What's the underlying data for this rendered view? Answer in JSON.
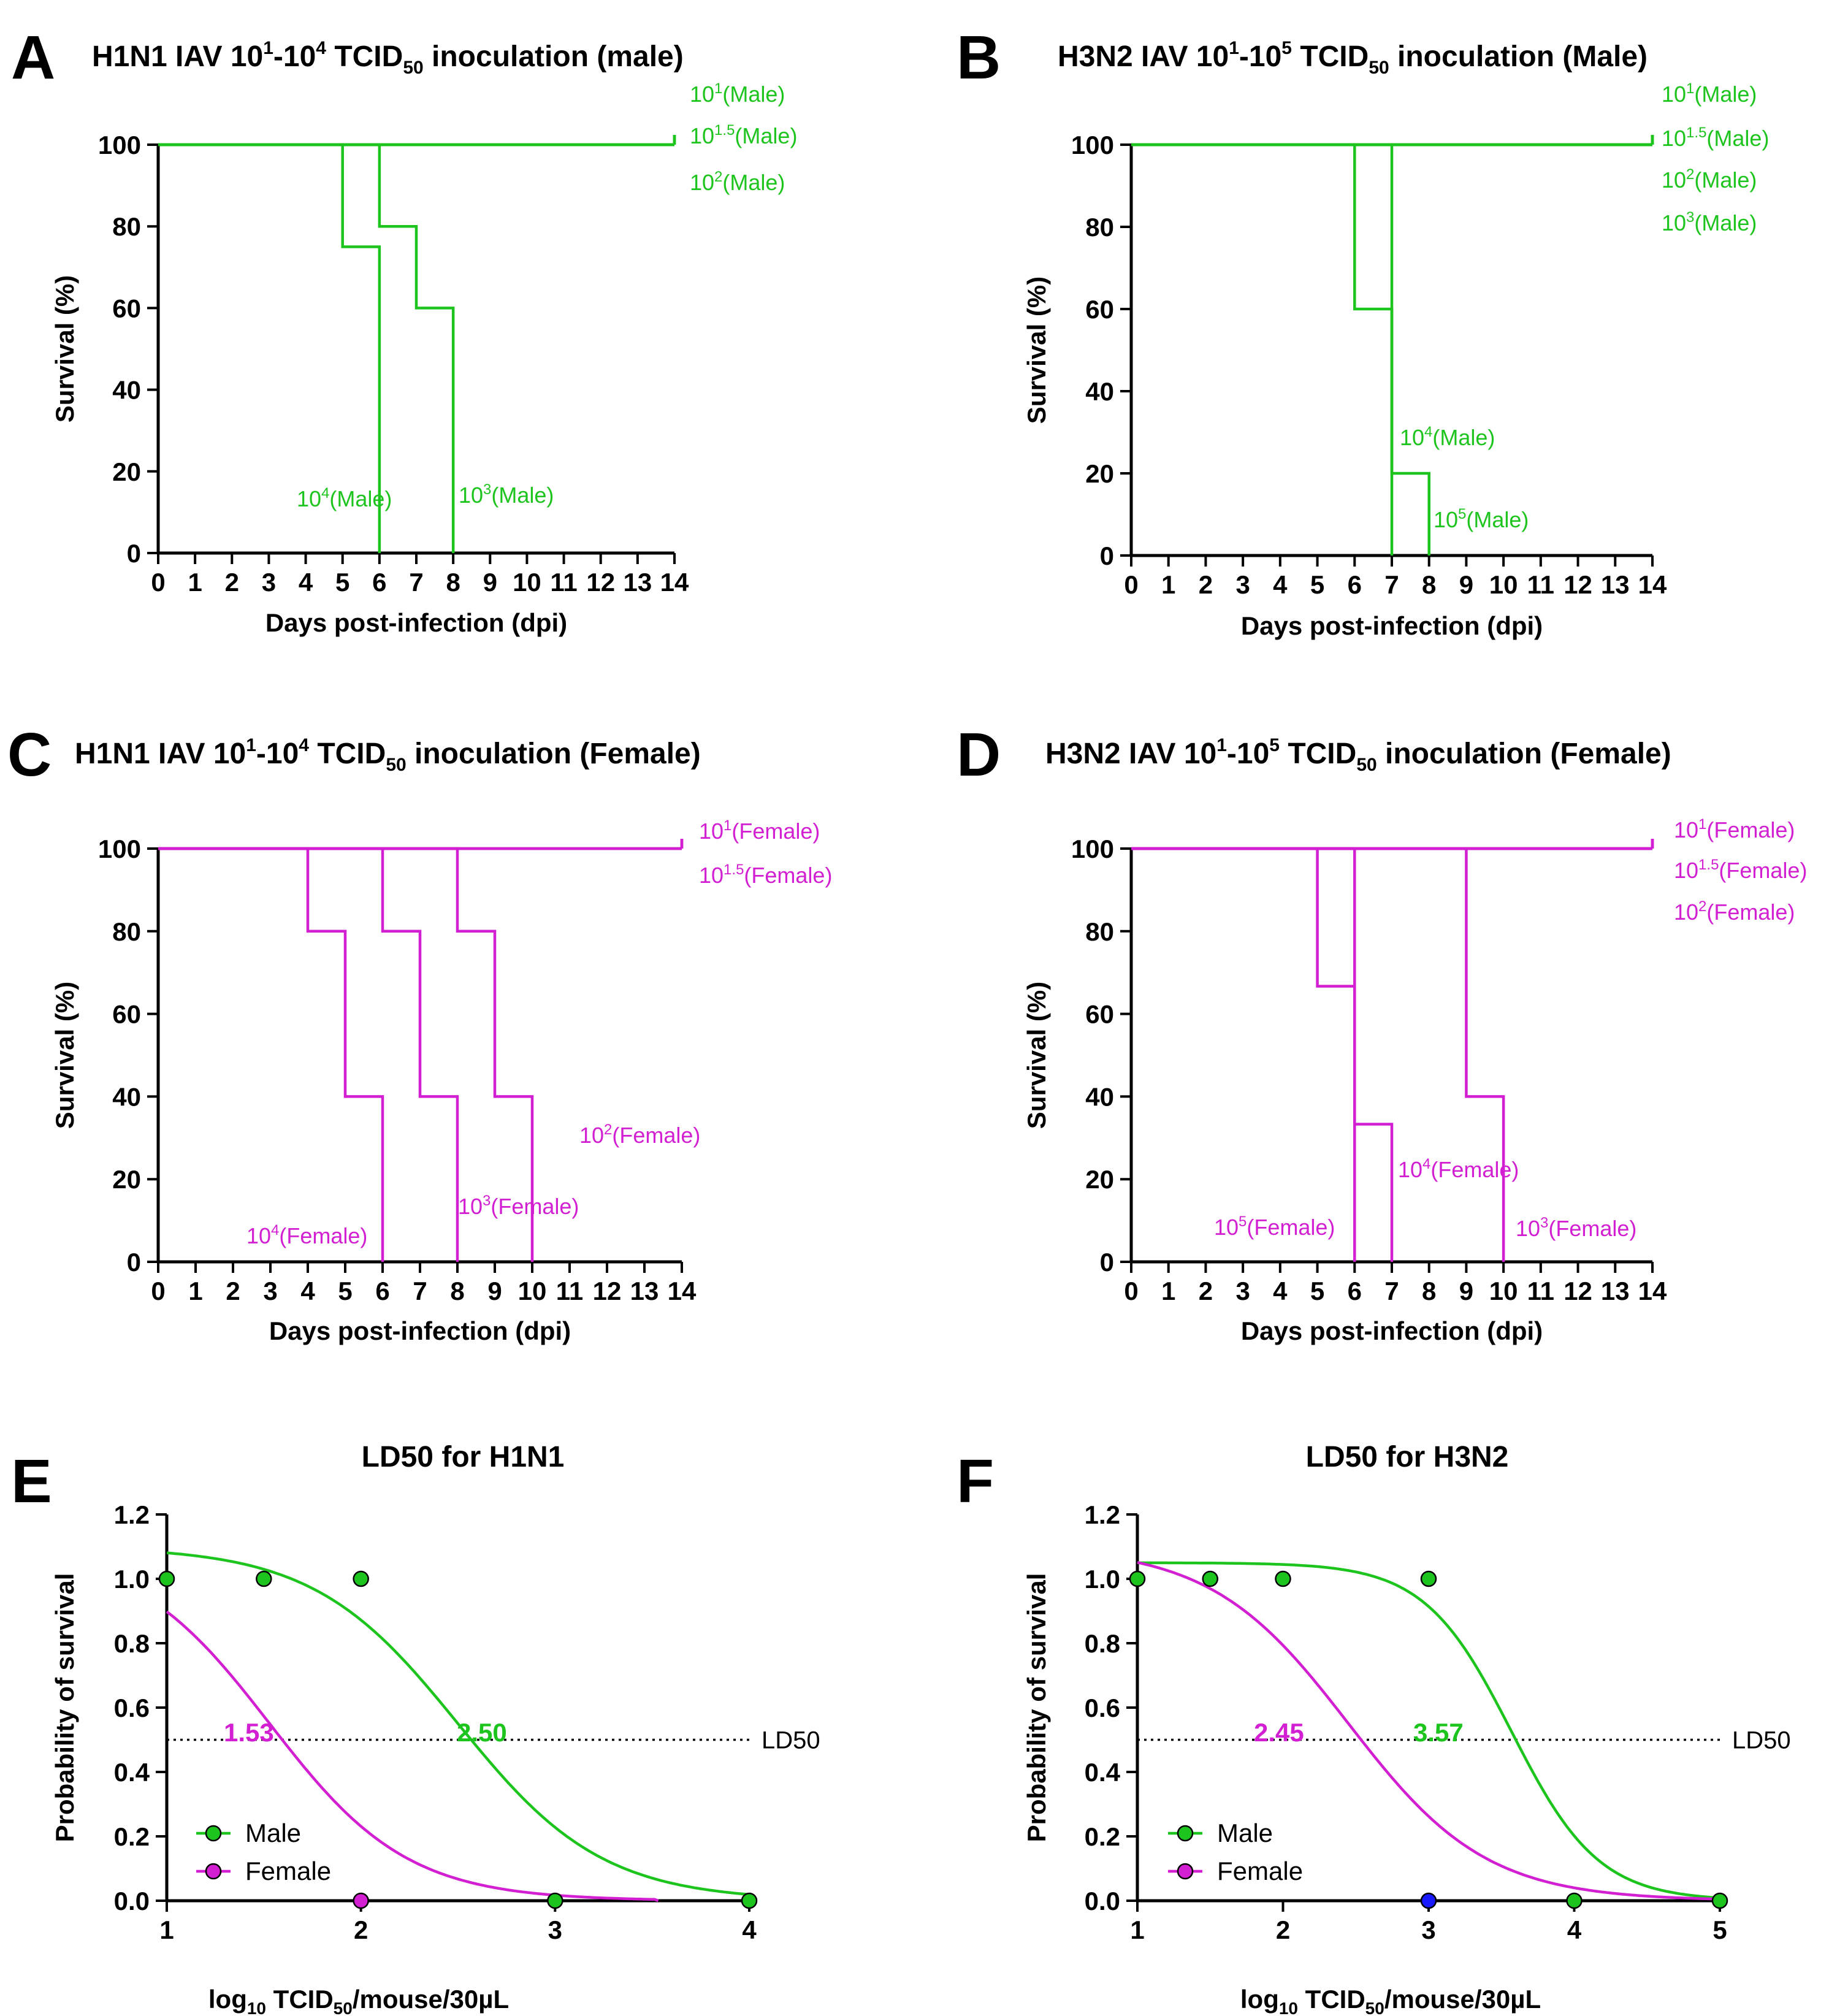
{
  "colors": {
    "male": "#1ec41e",
    "female": "#d21fd2",
    "axis": "#000000",
    "blue_point": "#1a1aff"
  },
  "panels": {
    "A": {
      "letter": "A",
      "title": {
        "pre": "H1N1 IAV 10",
        "sup1": "1",
        "mid": "-10",
        "sup2": "4",
        "post1": " TCID",
        "sub": "50",
        "post2": " inoculation (male)"
      }
    },
    "B": {
      "letter": "B",
      "title": {
        "pre": "H3N2 IAV 10",
        "sup1": "1",
        "mid": "-10",
        "sup2": "5",
        "post1": " TCID",
        "sub": "50",
        "post2": " inoculation (Male)"
      }
    },
    "C": {
      "letter": "C",
      "title": {
        "pre": "H1N1 IAV 10",
        "sup1": "1",
        "mid": "-10",
        "sup2": "4",
        "post1": " TCID",
        "sub": "50",
        "post2": " inoculation (Female)"
      }
    },
    "D": {
      "letter": "D",
      "title": {
        "pre": "H3N2 IAV 10",
        "sup1": "1",
        "mid": "-10",
        "sup2": "5",
        "post1": " TCID",
        "sub": "50",
        "post2": " inoculation (Female)"
      }
    },
    "E": {
      "letter": "E",
      "title": "LD50 for H1N1"
    },
    "F": {
      "letter": "F",
      "title": "LD50 for H3N2"
    }
  },
  "chart_data": [
    {
      "panel": "A",
      "type": "line",
      "step": true,
      "xlabel": "Days post-infection  (dpi)",
      "ylabel": "Survival  (%)",
      "xlim": [
        0,
        14
      ],
      "ylim": [
        0,
        100
      ],
      "xticks": [
        "0",
        "1",
        "2",
        "3",
        "4",
        "5",
        "6",
        "7",
        "8",
        "9",
        "10",
        "11",
        "12",
        "13",
        "14"
      ],
      "yticks": [
        "0",
        "20",
        "40",
        "60",
        "80",
        "100"
      ],
      "color": "male",
      "series": [
        {
          "name": "10^1(Male)",
          "x": [
            0,
            14
          ],
          "y": [
            100,
            100
          ]
        },
        {
          "name": "10^1.5(Male)",
          "x": [
            0,
            14
          ],
          "y": [
            100,
            100
          ]
        },
        {
          "name": "10^2(Male)",
          "x": [
            0,
            14
          ],
          "y": [
            100,
            100
          ]
        },
        {
          "name": "10^3(Male)",
          "x": [
            0,
            6,
            7,
            8
          ],
          "y": [
            100,
            80,
            60,
            0
          ]
        },
        {
          "name": "10^4(Male)",
          "x": [
            0,
            5,
            6
          ],
          "y": [
            100,
            75,
            0
          ]
        }
      ],
      "labels": [
        {
          "base": "10",
          "sup": "1",
          "tail": "(Male)"
        },
        {
          "base": "10",
          "sup": "1.5",
          "tail": "(Male)"
        },
        {
          "base": "10",
          "sup": "2",
          "tail": "(Male)"
        },
        {
          "base": "10",
          "sup": "4",
          "tail": "(Male)"
        },
        {
          "base": "10",
          "sup": "3",
          "tail": "(Male)"
        }
      ]
    },
    {
      "panel": "B",
      "type": "line",
      "step": true,
      "xlabel": "Days post-infection  (dpi)",
      "ylabel": "Survival  (%)",
      "xlim": [
        0,
        14
      ],
      "ylim": [
        0,
        100
      ],
      "xticks": [
        "0",
        "1",
        "2",
        "3",
        "4",
        "5",
        "6",
        "7",
        "8",
        "9",
        "10",
        "11",
        "12",
        "13",
        "14"
      ],
      "yticks": [
        "0",
        "20",
        "40",
        "60",
        "80",
        "100"
      ],
      "color": "male",
      "series": [
        {
          "name": "10^1(Male)",
          "x": [
            0,
            14
          ],
          "y": [
            100,
            100
          ]
        },
        {
          "name": "10^1.5(Male)",
          "x": [
            0,
            14
          ],
          "y": [
            100,
            100
          ]
        },
        {
          "name": "10^2(Male)",
          "x": [
            0,
            14
          ],
          "y": [
            100,
            100
          ]
        },
        {
          "name": "10^3(Male)",
          "x": [
            0,
            14
          ],
          "y": [
            100,
            100
          ]
        },
        {
          "name": "10^4(Male)",
          "x": [
            0,
            6,
            7
          ],
          "y": [
            100,
            60,
            0
          ]
        },
        {
          "name": "10^5(Male)",
          "x": [
            0,
            7,
            8
          ],
          "y": [
            100,
            20,
            0
          ]
        }
      ],
      "labels": [
        {
          "base": "10",
          "sup": "1",
          "tail": "(Male)"
        },
        {
          "base": "10",
          "sup": "1.5",
          "tail": "(Male)"
        },
        {
          "base": "10",
          "sup": "2",
          "tail": "(Male)"
        },
        {
          "base": "10",
          "sup": "3",
          "tail": "(Male)"
        },
        {
          "base": "10",
          "sup": "4",
          "tail": "(Male)"
        },
        {
          "base": "10",
          "sup": "5",
          "tail": "(Male)"
        }
      ]
    },
    {
      "panel": "C",
      "type": "line",
      "step": true,
      "xlabel": "Days post-infection  (dpi)",
      "ylabel": "Survival  (%)",
      "xlim": [
        0,
        14
      ],
      "ylim": [
        0,
        100
      ],
      "xticks": [
        "0",
        "1",
        "2",
        "3",
        "4",
        "5",
        "6",
        "7",
        "8",
        "9",
        "10",
        "11",
        "12",
        "13",
        "14"
      ],
      "yticks": [
        "0",
        "20",
        "40",
        "60",
        "80",
        "100"
      ],
      "color": "female",
      "series": [
        {
          "name": "10^1(Female)",
          "x": [
            0,
            14
          ],
          "y": [
            100,
            100
          ]
        },
        {
          "name": "10^1.5(Female)",
          "x": [
            0,
            14
          ],
          "y": [
            100,
            100
          ]
        },
        {
          "name": "10^4(Female)",
          "x": [
            0,
            4,
            5,
            6
          ],
          "y": [
            100,
            80,
            40,
            0
          ]
        },
        {
          "name": "10^3(Female)",
          "x": [
            0,
            6,
            7,
            8
          ],
          "y": [
            100,
            80,
            40,
            0
          ]
        },
        {
          "name": "10^2(Female)",
          "x": [
            0,
            8,
            9,
            10
          ],
          "y": [
            100,
            80,
            40,
            0
          ]
        }
      ],
      "labels": [
        {
          "base": "10",
          "sup": "1",
          "tail": "(Female)"
        },
        {
          "base": "10",
          "sup": "1.5",
          "tail": "(Female)"
        },
        {
          "base": "10",
          "sup": "2",
          "tail": "(Female)"
        },
        {
          "base": "10",
          "sup": "3",
          "tail": "(Female)"
        },
        {
          "base": "10",
          "sup": "4",
          "tail": "(Female)"
        }
      ]
    },
    {
      "panel": "D",
      "type": "line",
      "step": true,
      "xlabel": "Days post-infection  (dpi)",
      "ylabel": "Survival  (%)",
      "xlim": [
        0,
        14
      ],
      "ylim": [
        0,
        100
      ],
      "xticks": [
        "0",
        "1",
        "2",
        "3",
        "4",
        "5",
        "6",
        "7",
        "8",
        "9",
        "10",
        "11",
        "12",
        "13",
        "14"
      ],
      "yticks": [
        "0",
        "20",
        "40",
        "60",
        "80",
        "100"
      ],
      "color": "female",
      "series": [
        {
          "name": "10^1(Female)",
          "x": [
            0,
            14
          ],
          "y": [
            100,
            100
          ]
        },
        {
          "name": "10^1.5(Female)",
          "x": [
            0,
            14
          ],
          "y": [
            100,
            100
          ]
        },
        {
          "name": "10^2(Female)",
          "x": [
            0,
            14
          ],
          "y": [
            100,
            100
          ]
        },
        {
          "name": "10^5(Female)",
          "x": [
            0,
            5,
            6
          ],
          "y": [
            100,
            66.7,
            0
          ]
        },
        {
          "name": "10^4(Female)",
          "x": [
            0,
            6,
            7
          ],
          "y": [
            100,
            33.3,
            0
          ]
        },
        {
          "name": "10^3(Female)",
          "x": [
            0,
            9,
            10
          ],
          "y": [
            100,
            40,
            0
          ]
        }
      ],
      "labels": [
        {
          "base": "10",
          "sup": "1",
          "tail": "(Female)"
        },
        {
          "base": "10",
          "sup": "1.5",
          "tail": "(Female)"
        },
        {
          "base": "10",
          "sup": "2",
          "tail": "(Female)"
        },
        {
          "base": "10",
          "sup": "4",
          "tail": "(Female)"
        },
        {
          "base": "10",
          "sup": "5",
          "tail": "(Female)"
        },
        {
          "base": "10",
          "sup": "3",
          "tail": "(Female)"
        }
      ]
    },
    {
      "panel": "E",
      "type": "scatter",
      "title": "LD50 for H1N1",
      "xlabel": {
        "base": "log",
        "sub1": "10",
        "rest1": " TCID",
        "sub2": "50",
        "rest2": "/mouse/30µL"
      },
      "ylabel": "Probability of survival",
      "xlim": [
        1,
        4
      ],
      "ylim": [
        0,
        1.2
      ],
      "xticks": [
        "1",
        "2",
        "3",
        "4"
      ],
      "yticks": [
        "0.0",
        "0.2",
        "0.4",
        "0.6",
        "0.8",
        "1.0",
        "1.2"
      ],
      "ld50_line": 0.5,
      "ld50_label": "LD50",
      "legend": [
        "Male",
        "Female"
      ],
      "points": {
        "male": {
          "x": [
            1,
            1.5,
            2,
            3,
            4
          ],
          "y": [
            1,
            1,
            1,
            0,
            0
          ]
        },
        "female": {
          "x": [
            2
          ],
          "y": [
            0
          ]
        }
      },
      "curves": {
        "male": {
          "top": 1.1,
          "ld50": 2.5,
          "k": 1.22
        },
        "female": {
          "top": 1.1,
          "ld50": 1.53,
          "k": 1.28
        }
      },
      "ld50_values": {
        "male": "2.50",
        "female": "1.53"
      }
    },
    {
      "panel": "F",
      "type": "scatter",
      "title": "LD50 for H3N2",
      "xlabel": {
        "base": "log",
        "sub1": "10",
        "rest1": " TCID",
        "sub2": "50",
        "rest2": "/mouse/30µL"
      },
      "ylabel": "Probability of survival",
      "xlim": [
        1,
        5
      ],
      "ylim": [
        0,
        1.2
      ],
      "xticks": [
        "1",
        "2",
        "3",
        "4",
        "5"
      ],
      "yticks": [
        "0.0",
        "0.2",
        "0.4",
        "0.6",
        "0.8",
        "1.0",
        "1.2"
      ],
      "ld50_line": 0.5,
      "ld50_label": "LD50",
      "legend": [
        "Male",
        "Female"
      ],
      "points": {
        "male": {
          "x": [
            1,
            1.5,
            2,
            3,
            4,
            5
          ],
          "y": [
            1,
            1,
            1,
            1,
            0,
            0
          ]
        },
        "female": {
          "x": [
            3
          ],
          "y": [
            0
          ]
        }
      },
      "curves": {
        "male": {
          "top": 1.05,
          "ld50": 3.57,
          "k": 1.52
        },
        "female": {
          "top": 1.1,
          "ld50": 2.45,
          "k": 0.96
        }
      },
      "ld50_values": {
        "male": "3.57",
        "female": "2.45"
      }
    }
  ]
}
